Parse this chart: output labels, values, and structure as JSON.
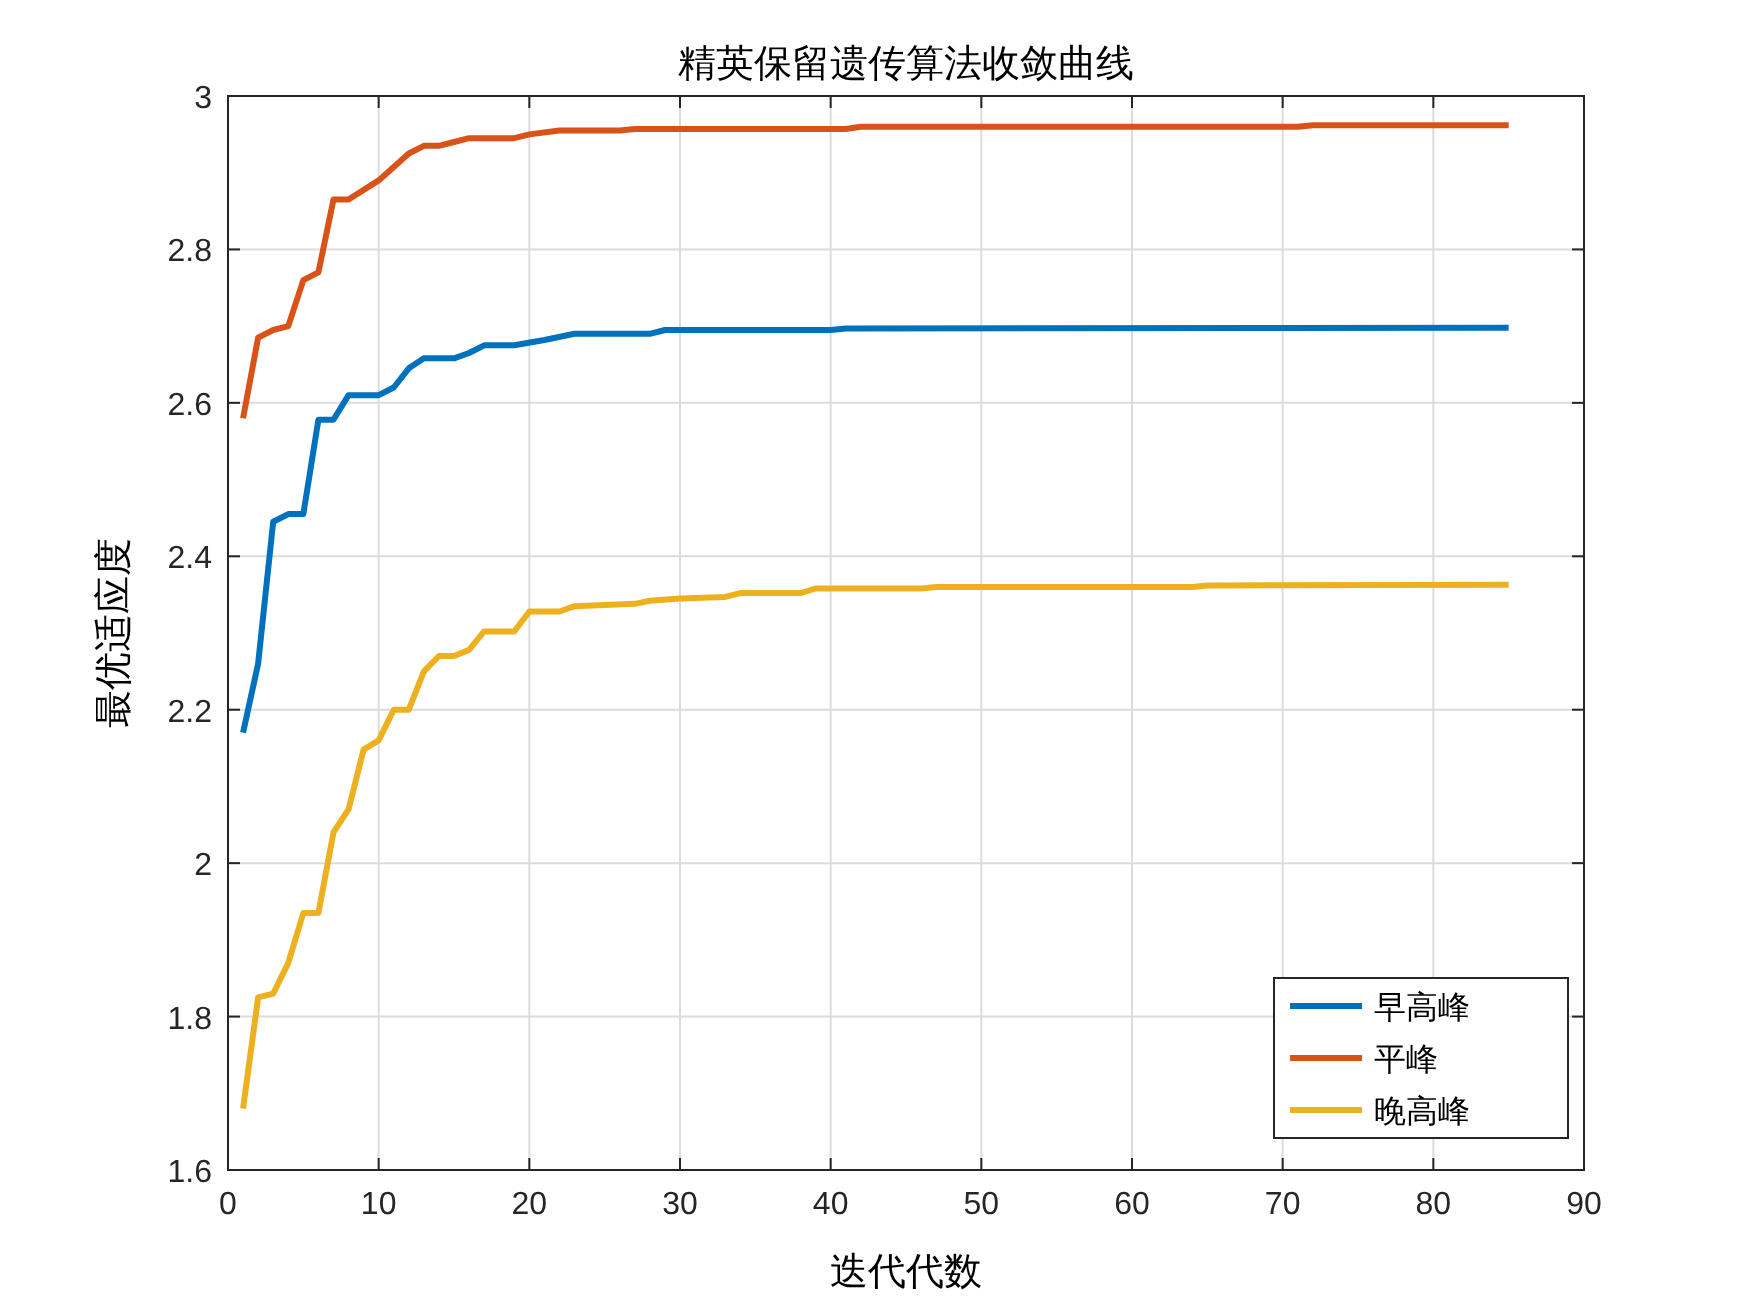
{
  "chart_data": {
    "type": "line",
    "title": "精英保留遗传算法收敛曲线",
    "xlabel": "迭代代数",
    "ylabel": "最优适应度",
    "xlim": [
      0,
      90
    ],
    "xticks": [
      0,
      10,
      20,
      30,
      40,
      50,
      60,
      70,
      80,
      90
    ],
    "ylim": [
      1.6,
      3
    ],
    "yticks": [
      1.6,
      1.8,
      2,
      2.2,
      2.4,
      2.6,
      2.8,
      3
    ],
    "grid": true,
    "legend": "bottom right",
    "marker": "none",
    "line_style": "solid",
    "series": [
      {
        "name": "早高峰",
        "color": "#0072bd",
        "x": [
          1,
          2,
          3,
          4,
          5,
          6,
          7,
          8,
          10,
          11,
          12,
          13,
          15,
          16,
          17,
          19,
          21,
          23,
          28,
          29,
          40,
          41,
          85
        ],
        "values": [
          2.17,
          2.26,
          2.445,
          2.455,
          2.455,
          2.578,
          2.578,
          2.61,
          2.61,
          2.62,
          2.645,
          2.658,
          2.658,
          2.665,
          2.675,
          2.675,
          2.682,
          2.69,
          2.69,
          2.695,
          2.695,
          2.697,
          2.698
        ]
      },
      {
        "name": "平峰",
        "color": "#d95319",
        "x": [
          1,
          2,
          3,
          4,
          5,
          6,
          7,
          8,
          10,
          12,
          13,
          14,
          15,
          16,
          19,
          20,
          22,
          26,
          27,
          41,
          42,
          71,
          72,
          85
        ],
        "values": [
          2.58,
          2.685,
          2.695,
          2.7,
          2.76,
          2.77,
          2.865,
          2.865,
          2.89,
          2.925,
          2.935,
          2.935,
          2.94,
          2.945,
          2.945,
          2.95,
          2.955,
          2.955,
          2.957,
          2.957,
          2.96,
          2.96,
          2.962,
          2.962
        ]
      },
      {
        "name": "晚高峰",
        "color": "#edb120",
        "x": [
          1,
          2,
          3,
          4,
          5,
          6,
          7,
          8,
          9,
          10,
          11,
          12,
          13,
          14,
          15,
          16,
          17,
          19,
          20,
          22,
          23,
          27,
          28,
          30,
          33,
          34,
          38,
          39,
          46,
          47,
          64,
          65,
          85
        ],
        "values": [
          1.68,
          1.825,
          1.83,
          1.87,
          1.935,
          1.935,
          2.04,
          2.07,
          2.148,
          2.16,
          2.2,
          2.2,
          2.25,
          2.27,
          2.27,
          2.278,
          2.302,
          2.302,
          2.328,
          2.328,
          2.335,
          2.338,
          2.342,
          2.345,
          2.347,
          2.352,
          2.352,
          2.358,
          2.358,
          2.36,
          2.36,
          2.362,
          2.363
        ]
      }
    ]
  }
}
